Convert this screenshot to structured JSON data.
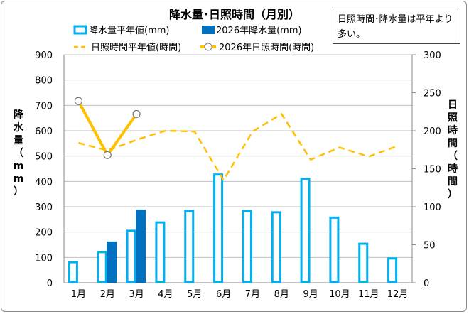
{
  "chart_data": {
    "type": "bar+line",
    "title": "降水量･日照時間（月別）",
    "categories": [
      "1月",
      "2月",
      "3月",
      "4月",
      "5月",
      "6月",
      "7月",
      "8月",
      "9月",
      "10月",
      "11月",
      "12月"
    ],
    "y_left": {
      "label": "降水量（mm）",
      "range": [
        0,
        900
      ],
      "ticks": [
        "0",
        "100",
        "200",
        "300",
        "400",
        "500",
        "600",
        "700",
        "800",
        "900"
      ]
    },
    "y_right": {
      "label": "日照時間（時間）",
      "range": [
        0,
        300
      ],
      "ticks": [
        "0",
        "50",
        "100",
        "150",
        "200",
        "250",
        "300"
      ]
    },
    "grid": true,
    "legend_position": "top",
    "series": [
      {
        "name": "降水量平年値(mm)",
        "type": "bar-outline",
        "axis": "left",
        "color": "#00b0f0",
        "values": [
          81,
          121,
          205,
          238,
          283,
          427,
          283,
          278,
          410,
          257,
          154,
          96
        ]
      },
      {
        "name": "2026年降水量(mm)",
        "type": "bar",
        "axis": "left",
        "color": "#0070c0",
        "values": [
          null,
          163,
          289,
          null,
          null,
          null,
          null,
          null,
          null,
          null,
          null,
          null
        ]
      },
      {
        "name": "日照時間平年値(時間)",
        "type": "line-dashed",
        "axis": "right",
        "color": "#ffc000",
        "values": [
          184,
          174,
          188,
          200,
          199,
          135,
          199,
          222,
          162,
          178,
          166,
          180
        ]
      },
      {
        "name": "2026年日照時間(時間)",
        "type": "line-markers",
        "axis": "right",
        "color": "#ffc000",
        "values": [
          239,
          168,
          222,
          null,
          null,
          null,
          null,
          null,
          null,
          null,
          null,
          null
        ]
      }
    ],
    "annotation": "日照時間･降水量は平年より多い。"
  }
}
